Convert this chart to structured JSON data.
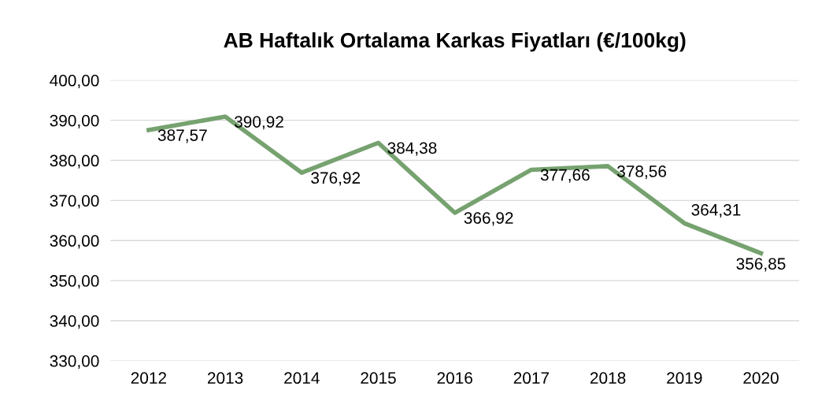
{
  "chart_data": {
    "type": "line",
    "title": "AB Haftalık Ortalama Karkas Fiyatları (€/100kg)",
    "categories": [
      "2012",
      "2013",
      "2014",
      "2015",
      "2016",
      "2017",
      "2018",
      "2019",
      "2020"
    ],
    "series": [
      {
        "color": "#76a26f",
        "values": [
          387.57,
          390.92,
          376.92,
          384.38,
          366.92,
          377.66,
          378.56,
          364.31,
          356.85
        ],
        "value_labels": [
          "387,57",
          "390,92",
          "376,92",
          "384,38",
          "366,92",
          "377,66",
          "378,56",
          "364,31",
          "356,85"
        ]
      }
    ],
    "ylim": [
      330,
      400
    ],
    "yticks": [
      {
        "value": 330,
        "label": "330,00"
      },
      {
        "value": 340,
        "label": "340,00"
      },
      {
        "value": 350,
        "label": "350,00"
      },
      {
        "value": 360,
        "label": "360,00"
      },
      {
        "value": 370,
        "label": "370,00"
      },
      {
        "value": 380,
        "label": "380,00"
      },
      {
        "value": 390,
        "label": "390,00"
      },
      {
        "value": 400,
        "label": "400,00"
      }
    ],
    "grid": "y",
    "marker": "none",
    "line_style": "solid",
    "legend": false
  }
}
